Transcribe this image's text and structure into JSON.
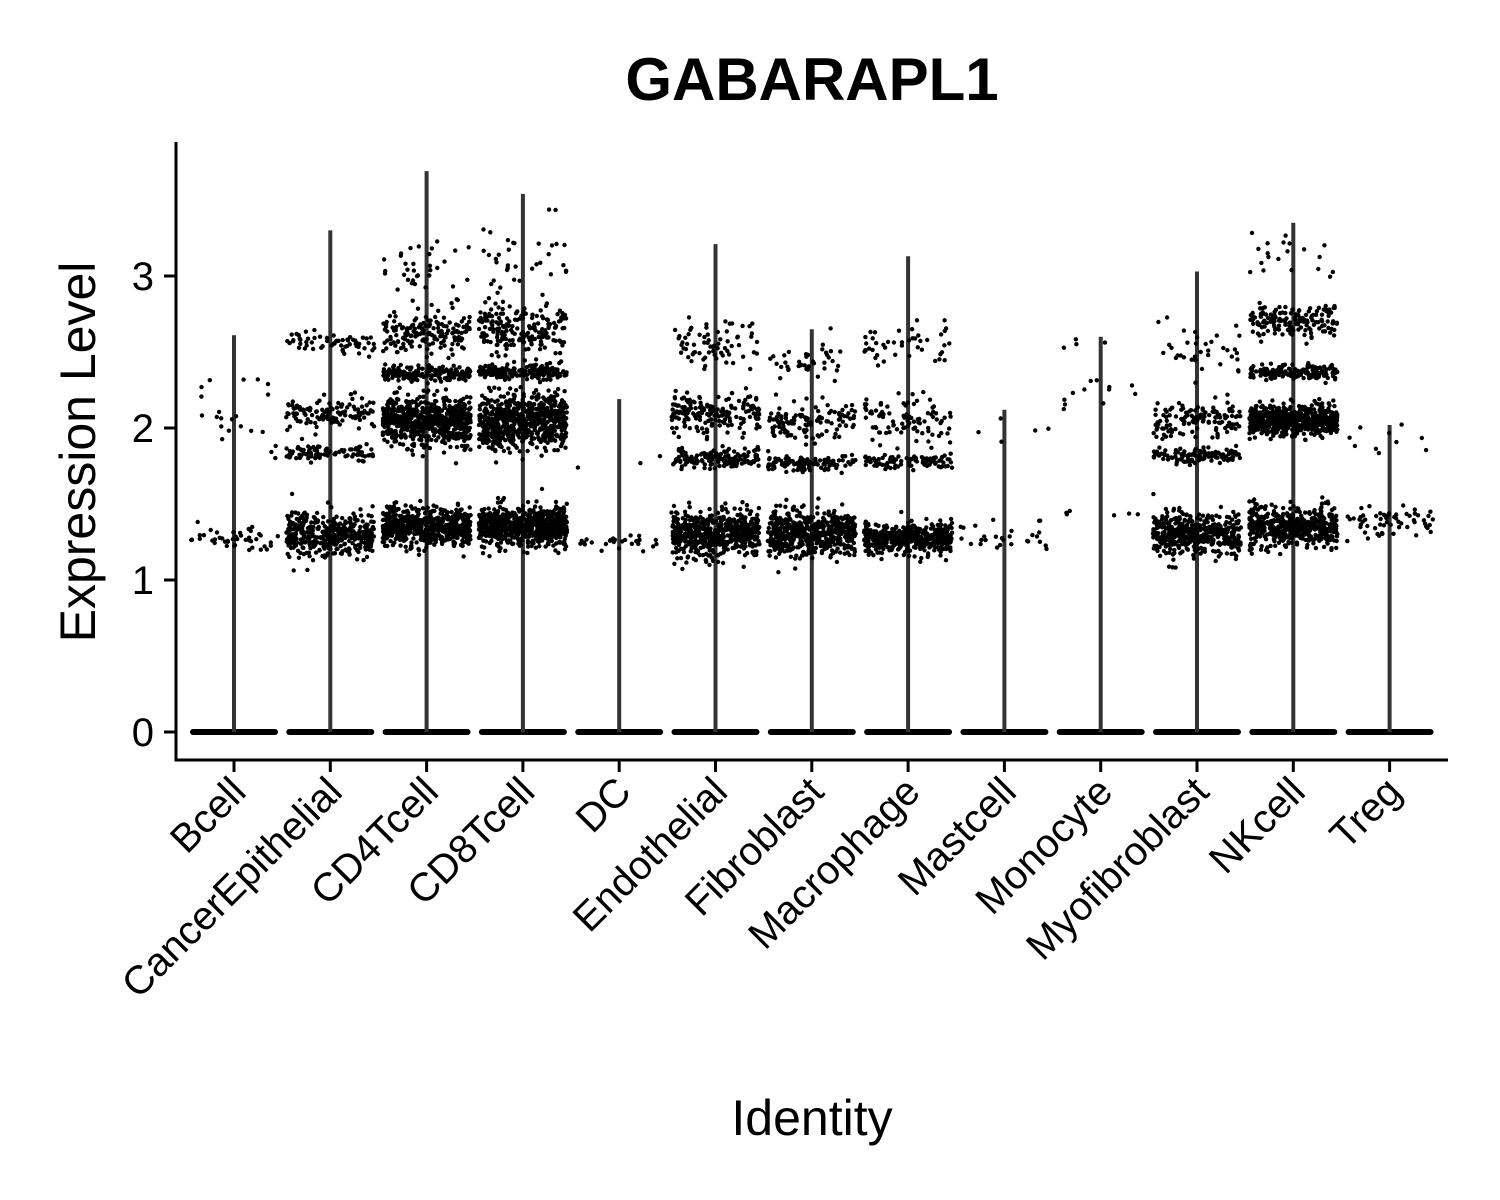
{
  "chart_data": {
    "type": "scatter",
    "subtype": "violin-jitter",
    "title": "GABARAPL1",
    "xlabel": "Identity",
    "ylabel": "Expression Level",
    "ylim": [
      -0.18,
      3.85
    ],
    "yticks": [
      0,
      1,
      2,
      3
    ],
    "categories": [
      "Bcell",
      "CancerEpithelial",
      "CD4Tcell",
      "CD8Tcell",
      "DC",
      "Endothelial",
      "Fibroblast",
      "Macrophage",
      "Mastcell",
      "Monocyte",
      "Myofibroblast",
      "NKcell",
      "Treg"
    ],
    "max_expression": [
      2.61,
      3.3,
      3.69,
      3.54,
      2.19,
      3.21,
      2.65,
      3.13,
      2.12,
      2.6,
      3.03,
      3.35,
      2.02
    ],
    "zero_level": 0,
    "expression_clusters": [
      {
        "category": "Bcell",
        "clusters": [
          {
            "center": 1.28,
            "spread": 0.1,
            "points": 45
          },
          {
            "center": 2.1,
            "spread": 0.3,
            "points": 22
          }
        ]
      },
      {
        "category": "CancerEpithelial",
        "clusters": [
          {
            "center": 1.3,
            "spread": 0.14,
            "points": 420
          },
          {
            "center": 1.83,
            "spread": 0.06,
            "points": 90
          },
          {
            "center": 2.1,
            "spread": 0.1,
            "points": 120
          },
          {
            "center": 2.55,
            "spread": 0.07,
            "points": 60
          }
        ]
      },
      {
        "category": "CD4Tcell",
        "clusters": [
          {
            "center": 1.35,
            "spread": 0.13,
            "points": 600
          },
          {
            "center": 2.05,
            "spread": 0.15,
            "points": 650
          },
          {
            "center": 2.36,
            "spread": 0.05,
            "points": 180
          },
          {
            "center": 2.62,
            "spread": 0.12,
            "points": 160
          },
          {
            "center": 3.0,
            "spread": 0.25,
            "points": 40
          }
        ]
      },
      {
        "category": "CD8Tcell",
        "clusters": [
          {
            "center": 1.35,
            "spread": 0.13,
            "points": 700
          },
          {
            "center": 2.05,
            "spread": 0.18,
            "points": 650
          },
          {
            "center": 2.37,
            "spread": 0.05,
            "points": 200
          },
          {
            "center": 2.65,
            "spread": 0.15,
            "points": 200
          },
          {
            "center": 3.1,
            "spread": 0.3,
            "points": 35
          }
        ]
      },
      {
        "category": "DC",
        "clusters": [
          {
            "center": 1.25,
            "spread": 0.05,
            "points": 28
          },
          {
            "center": 1.8,
            "spread": 0.05,
            "points": 3
          }
        ]
      },
      {
        "category": "Endothelial",
        "clusters": [
          {
            "center": 1.3,
            "spread": 0.15,
            "points": 550
          },
          {
            "center": 1.8,
            "spread": 0.06,
            "points": 150
          },
          {
            "center": 2.1,
            "spread": 0.15,
            "points": 170
          },
          {
            "center": 2.55,
            "spread": 0.15,
            "points": 70
          }
        ]
      },
      {
        "category": "Fibroblast",
        "clusters": [
          {
            "center": 1.3,
            "spread": 0.15,
            "points": 550
          },
          {
            "center": 1.77,
            "spread": 0.05,
            "points": 110
          },
          {
            "center": 2.05,
            "spread": 0.12,
            "points": 120
          },
          {
            "center": 2.45,
            "spread": 0.15,
            "points": 40
          }
        ]
      },
      {
        "category": "Macrophage",
        "clusters": [
          {
            "center": 1.27,
            "spread": 0.1,
            "points": 450
          },
          {
            "center": 1.78,
            "spread": 0.05,
            "points": 90
          },
          {
            "center": 2.05,
            "spread": 0.15,
            "points": 90
          },
          {
            "center": 2.55,
            "spread": 0.15,
            "points": 45
          }
        ]
      },
      {
        "category": "Mastcell",
        "clusters": [
          {
            "center": 1.28,
            "spread": 0.1,
            "points": 28
          },
          {
            "center": 2.0,
            "spread": 0.15,
            "points": 5
          }
        ]
      },
      {
        "category": "Monocyte",
        "clusters": [
          {
            "center": 1.44,
            "spread": 0.02,
            "points": 6
          },
          {
            "center": 2.2,
            "spread": 0.15,
            "points": 12
          },
          {
            "center": 2.55,
            "spread": 0.04,
            "points": 4
          }
        ]
      },
      {
        "category": "Myofibroblast",
        "clusters": [
          {
            "center": 1.3,
            "spread": 0.14,
            "points": 480
          },
          {
            "center": 1.82,
            "spread": 0.05,
            "points": 110
          },
          {
            "center": 2.05,
            "spread": 0.15,
            "points": 130
          },
          {
            "center": 2.5,
            "spread": 0.2,
            "points": 35
          }
        ]
      },
      {
        "category": "NKcell",
        "clusters": [
          {
            "center": 1.35,
            "spread": 0.13,
            "points": 520
          },
          {
            "center": 2.05,
            "spread": 0.1,
            "points": 550
          },
          {
            "center": 2.37,
            "spread": 0.05,
            "points": 160
          },
          {
            "center": 2.7,
            "spread": 0.1,
            "points": 150
          },
          {
            "center": 3.15,
            "spread": 0.2,
            "points": 20
          }
        ]
      },
      {
        "category": "Treg",
        "clusters": [
          {
            "center": 1.38,
            "spread": 0.1,
            "points": 60
          },
          {
            "center": 1.9,
            "spread": 0.12,
            "points": 10
          }
        ]
      }
    ]
  }
}
